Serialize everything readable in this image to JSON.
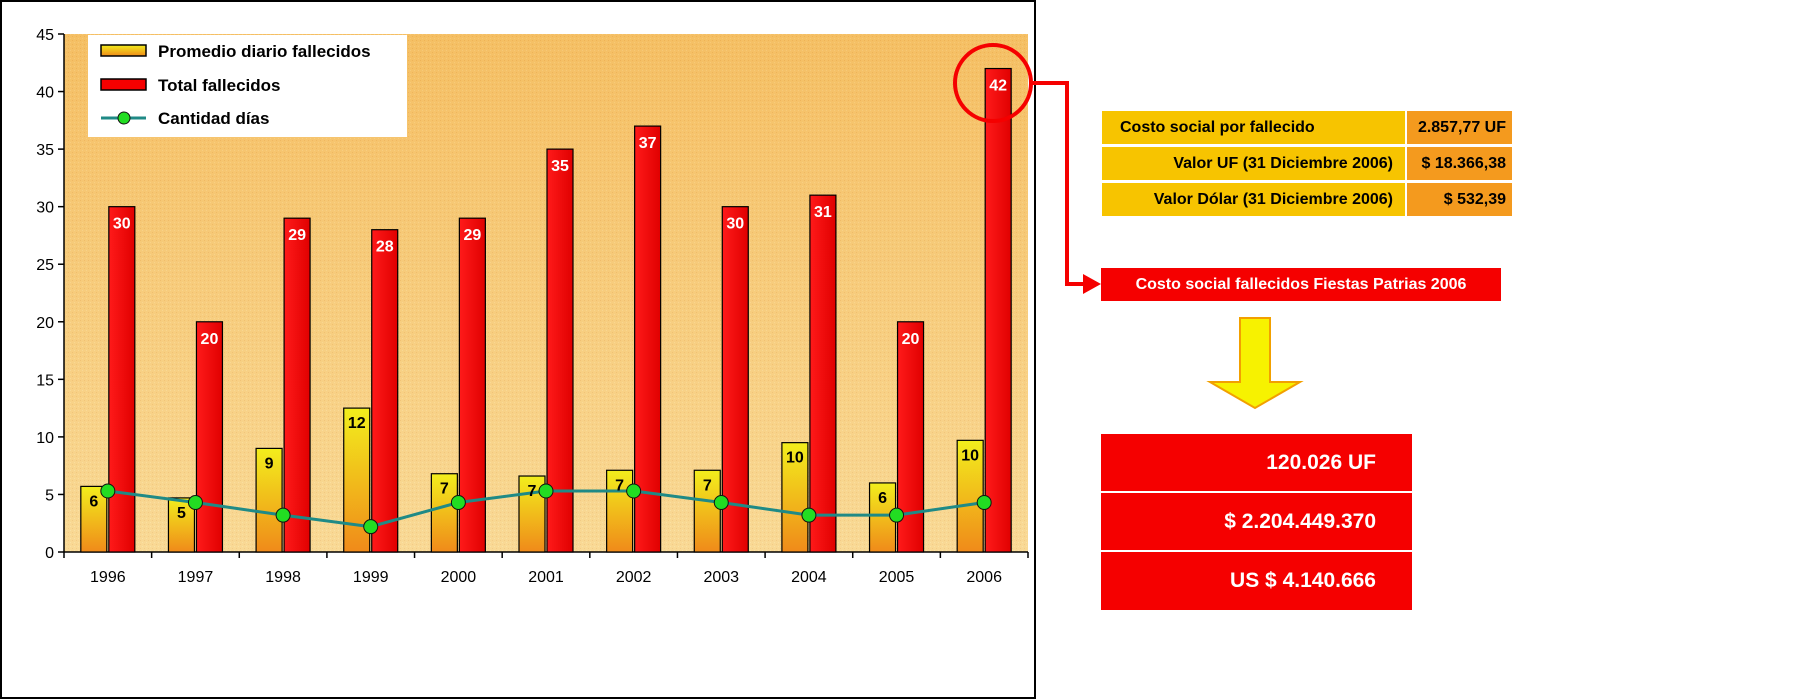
{
  "chart_data": {
    "type": "bar",
    "categories": [
      "1996",
      "1997",
      "1998",
      "1999",
      "2000",
      "2001",
      "2002",
      "2003",
      "2004",
      "2005",
      "2006"
    ],
    "series": [
      {
        "name": "Promedio diario fallecidos",
        "kind": "bar",
        "values": [
          5.7,
          4.7,
          9.0,
          12.5,
          6.8,
          6.6,
          7.1,
          7.1,
          9.5,
          6.0,
          9.7
        ],
        "labels": [
          "6",
          "5",
          "9",
          "12",
          "7",
          "7",
          "7",
          "7",
          "10",
          "6",
          "10"
        ]
      },
      {
        "name": "Total fallecidos",
        "kind": "bar",
        "values": [
          30,
          20,
          29,
          28,
          29,
          35,
          37,
          30,
          31,
          20,
          42
        ],
        "labels": [
          "30",
          "20",
          "29",
          "28",
          "29",
          "35",
          "37",
          "30",
          "31",
          "20",
          "42"
        ]
      },
      {
        "name": "Cantidad días",
        "kind": "line",
        "values": [
          5.3,
          4.3,
          3.2,
          2.2,
          4.3,
          5.3,
          5.3,
          4.3,
          3.2,
          3.2,
          4.3
        ]
      }
    ],
    "y_ticks": [
      "0",
      "5",
      "10",
      "15",
      "20",
      "25",
      "30",
      "35",
      "40",
      "45"
    ],
    "ylim": [
      0,
      45
    ],
    "legend_position": "top-left",
    "highlight_category": "2006",
    "colors": {
      "avg_bar_top": "#f2ee1c",
      "avg_bar_bottom": "#f08a1a",
      "total_bar": "#f50000",
      "line": "#1f8a86",
      "marker": "#22dd22",
      "plot_bg": "#f5c16a",
      "highlight": "#f50000"
    }
  },
  "table": {
    "rows": [
      {
        "label": "Costo social por fallecido",
        "value": "2.857,77 UF"
      },
      {
        "label": "Valor UF (31 Diciembre 2006)",
        "value": "$ 18.366,38"
      },
      {
        "label": "Valor Dólar (31 Diciembre 2006)",
        "value": "$ 532,39"
      }
    ],
    "colors": {
      "label_bg": "#f7c400",
      "value_bg": "#f49a1e"
    }
  },
  "banner": {
    "title": "Costo social fallecidos Fiestas Patrias 2006"
  },
  "result": {
    "lines": [
      "120.026 UF",
      "$ 2.204.449.370",
      "US $ 4.140.666"
    ]
  },
  "colors": {
    "arrow_down": "#f7f200",
    "arrow_outline": "#f2a000",
    "connector": "#f50000"
  }
}
